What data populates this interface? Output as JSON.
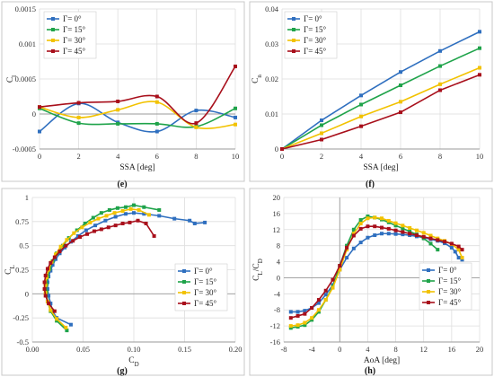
{
  "colors": {
    "gamma0": "#2f6fbf",
    "gamma15": "#1fa34a",
    "gamma30": "#f2c200",
    "gamma45": "#a80f1b"
  },
  "chart_data": [
    {
      "id": "e",
      "panel_label": "(e)",
      "type": "line",
      "xlabel": "SSA [deg]",
      "ylabel": "Cl",
      "xlim": [
        0,
        10
      ],
      "ylim": [
        -0.0005,
        0.0015
      ],
      "xticks": [
        "0",
        "2",
        "4",
        "6",
        "8",
        "10"
      ],
      "yticks": [
        "-0.0005",
        "0",
        "0.0005",
        "0.001",
        "0.0015"
      ],
      "grid": true,
      "legend": "top-left",
      "smooth": true,
      "series": [
        {
          "name": "Γ= 0°",
          "color": "gamma0",
          "x": [
            0,
            2,
            4,
            6,
            8,
            10
          ],
          "y": [
            -0.00025,
            0.00015,
            -0.00012,
            -0.00025,
            5e-05,
            -5e-05
          ]
        },
        {
          "name": "Γ= 15°",
          "color": "gamma15",
          "x": [
            0,
            2,
            4,
            6,
            8,
            10
          ],
          "y": [
            8e-05,
            -0.00013,
            -0.00014,
            -0.00014,
            -0.00018,
            8e-05
          ]
        },
        {
          "name": "Γ= 30°",
          "color": "gamma30",
          "x": [
            0,
            2,
            4,
            6,
            8,
            10
          ],
          "y": [
            0.0001,
            -5e-05,
            6e-05,
            0.00017,
            -0.00019,
            -0.00015
          ]
        },
        {
          "name": "Γ= 45°",
          "color": "gamma45",
          "x": [
            0,
            2,
            4,
            6,
            8,
            10
          ],
          "y": [
            0.0001,
            0.00016,
            0.00018,
            0.00025,
            -0.00013,
            0.00068
          ]
        }
      ]
    },
    {
      "id": "f",
      "panel_label": "(f)",
      "type": "line",
      "xlabel": "SSA [deg]",
      "ylabel": "Cn",
      "xlim": [
        0,
        10
      ],
      "ylim": [
        0,
        0.04
      ],
      "xticks": [
        "0",
        "2",
        "4",
        "6",
        "8",
        "10"
      ],
      "yticks": [
        "0",
        "0.01",
        "0.02",
        "0.03",
        "0.04"
      ],
      "grid": true,
      "legend": "top-left",
      "smooth": false,
      "series": [
        {
          "name": "Γ= 0°",
          "color": "gamma0",
          "x": [
            0,
            2,
            4,
            6,
            8,
            10
          ],
          "y": [
            0,
            0.0082,
            0.0153,
            0.022,
            0.028,
            0.0335
          ]
        },
        {
          "name": "Γ= 15°",
          "color": "gamma15",
          "x": [
            0,
            2,
            4,
            6,
            8,
            10
          ],
          "y": [
            0,
            0.0068,
            0.0127,
            0.0182,
            0.0237,
            0.0288
          ]
        },
        {
          "name": "Γ= 30°",
          "color": "gamma30",
          "x": [
            0,
            2,
            4,
            6,
            8,
            10
          ],
          "y": [
            0,
            0.0045,
            0.0093,
            0.0135,
            0.0185,
            0.0232
          ]
        },
        {
          "name": "Γ= 45°",
          "color": "gamma45",
          "x": [
            0,
            2,
            4,
            6,
            8,
            10
          ],
          "y": [
            0,
            0.0027,
            0.0065,
            0.0105,
            0.0168,
            0.0212
          ]
        }
      ]
    },
    {
      "id": "g",
      "panel_label": "(g)",
      "type": "line",
      "xlabel": "CD",
      "ylabel": "CL",
      "xlim": [
        0,
        0.2
      ],
      "ylim": [
        -0.5,
        1
      ],
      "xticks": [
        "0.00",
        "0.05",
        "0.10",
        "0.15",
        "0.20"
      ],
      "yticks": [
        "-0.5",
        "-0.25",
        "0",
        "0.25",
        "0.5",
        "0.75",
        "1"
      ],
      "grid": true,
      "legend": "bottom-right",
      "smooth": false,
      "series": [
        {
          "name": "Γ= 0°",
          "color": "gamma0",
          "x": [
            0.038,
            0.024,
            0.02,
            0.018,
            0.016,
            0.015,
            0.015,
            0.016,
            0.018,
            0.02,
            0.023,
            0.027,
            0.032,
            0.038,
            0.045,
            0.053,
            0.062,
            0.072,
            0.082,
            0.092,
            0.1,
            0.11,
            0.125,
            0.14,
            0.155,
            0.16,
            0.17
          ],
          "y": [
            -0.32,
            -0.25,
            -0.18,
            -0.1,
            -0.02,
            0.05,
            0.12,
            0.18,
            0.24,
            0.3,
            0.36,
            0.42,
            0.48,
            0.54,
            0.6,
            0.66,
            0.71,
            0.76,
            0.8,
            0.83,
            0.84,
            0.83,
            0.81,
            0.78,
            0.76,
            0.73,
            0.74
          ]
        },
        {
          "name": "Γ= 15°",
          "color": "gamma15",
          "x": [
            0.034,
            0.024,
            0.018,
            0.015,
            0.014,
            0.014,
            0.015,
            0.017,
            0.02,
            0.024,
            0.03,
            0.036,
            0.044,
            0.052,
            0.06,
            0.068,
            0.076,
            0.084,
            0.092,
            0.1,
            0.11,
            0.125
          ],
          "y": [
            -0.38,
            -0.28,
            -0.18,
            -0.08,
            0.02,
            0.1,
            0.18,
            0.26,
            0.34,
            0.42,
            0.5,
            0.58,
            0.66,
            0.73,
            0.79,
            0.84,
            0.87,
            0.89,
            0.9,
            0.92,
            0.9,
            0.87
          ]
        },
        {
          "name": "Γ= 30°",
          "color": "gamma30",
          "x": [
            0.033,
            0.024,
            0.018,
            0.015,
            0.013,
            0.013,
            0.014,
            0.016,
            0.019,
            0.023,
            0.028,
            0.034,
            0.041,
            0.049,
            0.057,
            0.065,
            0.073,
            0.081,
            0.089,
            0.097,
            0.105,
            0.115
          ],
          "y": [
            -0.35,
            -0.26,
            -0.17,
            -0.08,
            0.01,
            0.09,
            0.17,
            0.25,
            0.33,
            0.41,
            0.49,
            0.56,
            0.63,
            0.69,
            0.74,
            0.78,
            0.81,
            0.84,
            0.86,
            0.88,
            0.87,
            0.82
          ]
        },
        {
          "name": "Γ= 45°",
          "color": "gamma45",
          "x": [
            0.022,
            0.016,
            0.013,
            0.012,
            0.012,
            0.013,
            0.015,
            0.018,
            0.022,
            0.027,
            0.033,
            0.04,
            0.047,
            0.054,
            0.061,
            0.068,
            0.075,
            0.082,
            0.089,
            0.096,
            0.104,
            0.112,
            0.12
          ],
          "y": [
            -0.18,
            -0.1,
            -0.02,
            0.05,
            0.12,
            0.19,
            0.26,
            0.32,
            0.38,
            0.44,
            0.5,
            0.55,
            0.59,
            0.62,
            0.65,
            0.67,
            0.69,
            0.71,
            0.73,
            0.74,
            0.76,
            0.73,
            0.6
          ]
        }
      ]
    },
    {
      "id": "h",
      "panel_label": "(h)",
      "type": "line",
      "xlabel": "AoA [deg]",
      "ylabel": "CL/CD",
      "xlim": [
        -8,
        20
      ],
      "ylim": [
        -16,
        20
      ],
      "xticks": [
        "-8",
        "-4",
        "0",
        "4",
        "8",
        "12",
        "16",
        "20"
      ],
      "yticks": [
        "-16",
        "-12",
        "-8",
        "-4",
        "0",
        "4",
        "8",
        "12",
        "16",
        "20"
      ],
      "grid": true,
      "legend": "bottom-right",
      "smooth": false,
      "series": [
        {
          "name": "Γ= 0°",
          "color": "gamma0",
          "x": [
            -7,
            -6,
            -5,
            -4,
            -3,
            -2,
            -1,
            0,
            1,
            2,
            3,
            4,
            5,
            6,
            7,
            8,
            9,
            10,
            11,
            12,
            13,
            14,
            15,
            16,
            16.5,
            17,
            17.5
          ],
          "y": [
            -8.5,
            -8.5,
            -8.2,
            -7.5,
            -6.3,
            -4.2,
            -1.8,
            2,
            5,
            7.3,
            8.8,
            10,
            10.6,
            11,
            11,
            10.9,
            10.8,
            10.6,
            10.3,
            10,
            9.6,
            9.2,
            8.6,
            7.5,
            6.5,
            5,
            4.5
          ]
        },
        {
          "name": "Γ= 15°",
          "color": "gamma15",
          "x": [
            -7,
            -6,
            -5,
            -4,
            -3,
            -2,
            -1,
            0,
            1,
            2,
            3,
            4,
            5,
            6,
            7,
            8,
            9,
            10,
            11,
            12,
            13,
            14
          ],
          "y": [
            -12.5,
            -12.2,
            -11.8,
            -10.5,
            -8.5,
            -5.5,
            -2.2,
            3,
            8,
            12,
            14.4,
            15.3,
            15,
            14.5,
            13.8,
            13,
            12.3,
            11.5,
            10.8,
            9.8,
            8.5,
            7
          ]
        },
        {
          "name": "Γ= 30°",
          "color": "gamma30",
          "x": [
            -7,
            -6,
            -5,
            -4,
            -3,
            -2,
            -1,
            0,
            1,
            2,
            3,
            4,
            5,
            6,
            7,
            8,
            9,
            10,
            11,
            12,
            13,
            14,
            15,
            16,
            17,
            17.5
          ],
          "y": [
            -12,
            -11.8,
            -11.2,
            -10,
            -8,
            -5.5,
            -2.5,
            2,
            7,
            11,
            13.5,
            14.8,
            15,
            14.8,
            14.2,
            13.6,
            13,
            12.4,
            11.8,
            11.2,
            10.5,
            9.8,
            9.2,
            8.4,
            7,
            5
          ]
        },
        {
          "name": "Γ= 45°",
          "color": "gamma45",
          "x": [
            -7,
            -6,
            -5,
            -4,
            -3,
            -2,
            -1,
            0,
            1,
            2,
            3,
            4,
            5,
            6,
            7,
            8,
            9,
            10,
            11,
            12,
            13,
            14,
            15,
            16,
            17,
            17.5
          ],
          "y": [
            -10,
            -9.5,
            -9,
            -7.5,
            -5.5,
            -3.2,
            -0.5,
            3,
            7.5,
            10.5,
            12.2,
            12.8,
            12.8,
            12.5,
            12.2,
            11.8,
            11.4,
            11,
            10.6,
            10.2,
            9.8,
            9.4,
            9,
            8.5,
            7.8,
            7
          ]
        }
      ]
    }
  ]
}
